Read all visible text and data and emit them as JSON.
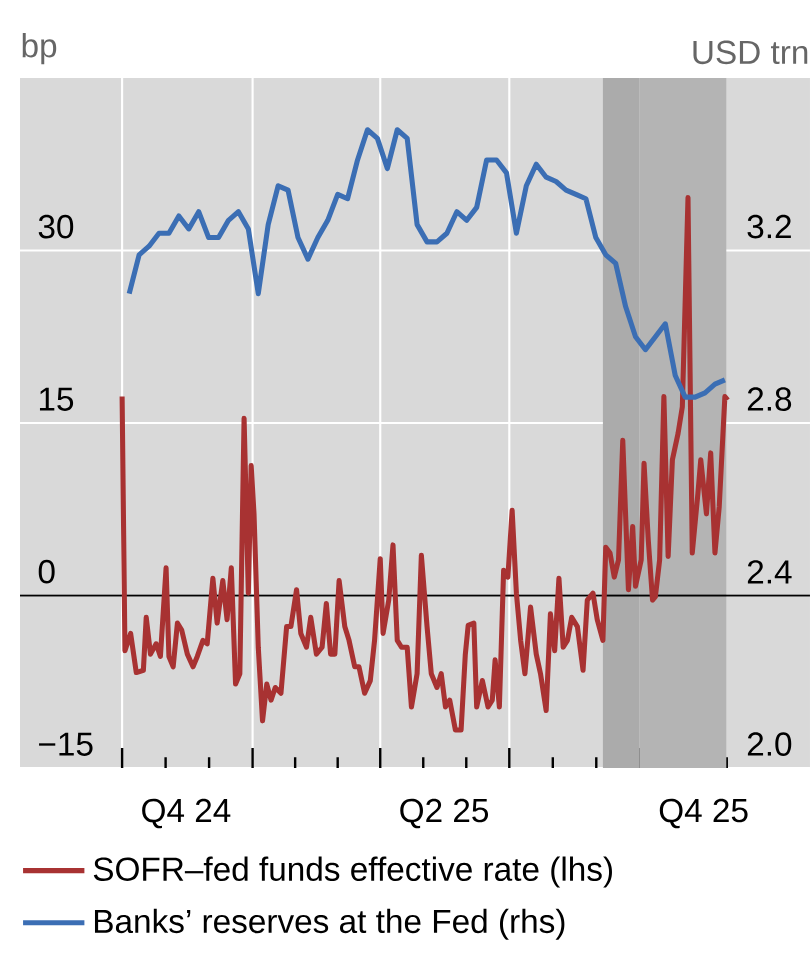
{
  "chart_data": {
    "type": "line",
    "ylabel": "bp",
    "y2label": "USD trn",
    "xlim": [
      "2024-07-21",
      "2026-01-29"
    ],
    "xticks": [
      {
        "value": "2024-10-01",
        "label": null
      },
      {
        "value": "2025-01-01",
        "label": null
      },
      {
        "value": "2025-04-01",
        "label": null
      },
      {
        "value": "2025-07-01",
        "label": null
      },
      {
        "value": "2025-10-01",
        "label": null
      },
      {
        "value": "2024-11-15",
        "label": "Q4 24"
      },
      {
        "value": "2025-05-16",
        "label": "Q2 25"
      },
      {
        "value": "2025-11-15",
        "label": "Q4 25"
      }
    ],
    "ylim": [
      -15,
      45
    ],
    "yticks": [
      {
        "value": -15,
        "label": "−15"
      },
      0,
      15,
      30
    ],
    "y2lim": [
      2.0,
      3.6
    ],
    "y2ticks": [
      {
        "value": 2.0,
        "label": "2.0"
      },
      2.4,
      2.8,
      3.2
    ],
    "grid": true,
    "legend": "bottom",
    "ref_lines": [
      {
        "axis": "y",
        "value": 0,
        "color": "#000000"
      }
    ],
    "bands": [
      {
        "axis": "x",
        "from": "2025-09-05",
        "to": "2025-10-01",
        "color": "#ababab"
      },
      {
        "axis": "x",
        "from": "2025-10-01",
        "to": "2025-12-01",
        "color": "#b4b4b4"
      }
    ],
    "series": [
      {
        "name": "SOFR–fed funds effective rate (lhs)",
        "color": "#a83232",
        "x": [
          "2024-10-01",
          "2024-10-03",
          "2024-10-07",
          "2024-10-11",
          "2024-10-16",
          "2024-10-18",
          "2024-10-21",
          "2024-10-25",
          "2024-10-28",
          "2024-11-01",
          "2024-11-03",
          "2024-11-06",
          "2024-11-09",
          "2024-11-12",
          "2024-11-16",
          "2024-11-20",
          "2024-11-23",
          "2024-11-27",
          "2024-11-30",
          "2024-12-04",
          "2024-12-07",
          "2024-12-11",
          "2024-12-14",
          "2024-12-17",
          "2024-12-20",
          "2024-12-23",
          "2024-12-26",
          "2024-12-29",
          "2024-12-31",
          "2025-01-02",
          "2025-01-05",
          "2025-01-08",
          "2025-01-11",
          "2025-01-14",
          "2025-01-17",
          "2025-01-21",
          "2025-01-25",
          "2025-01-28",
          "2025-02-01",
          "2025-02-04",
          "2025-02-08",
          "2025-02-11",
          "2025-02-15",
          "2025-02-19",
          "2025-02-22",
          "2025-02-25",
          "2025-02-28",
          "2025-03-03",
          "2025-03-07",
          "2025-03-10",
          "2025-03-14",
          "2025-03-17",
          "2025-03-21",
          "2025-03-25",
          "2025-03-28",
          "2025-04-01",
          "2025-04-03",
          "2025-04-07",
          "2025-04-10",
          "2025-04-13",
          "2025-04-16",
          "2025-04-20",
          "2025-04-23",
          "2025-04-27",
          "2025-04-30",
          "2025-05-04",
          "2025-05-07",
          "2025-05-11",
          "2025-05-14",
          "2025-05-17",
          "2025-05-20",
          "2025-05-24",
          "2025-05-28",
          "2025-05-31",
          "2025-06-02",
          "2025-06-06",
          "2025-06-08",
          "2025-06-12",
          "2025-06-16",
          "2025-06-19",
          "2025-06-21",
          "2025-06-24",
          "2025-06-27",
          "2025-06-30",
          "2025-07-03",
          "2025-07-06",
          "2025-07-09",
          "2025-07-12",
          "2025-07-16",
          "2025-07-20",
          "2025-07-23",
          "2025-07-27",
          "2025-07-30",
          "2025-08-02",
          "2025-08-05",
          "2025-08-08",
          "2025-08-11",
          "2025-08-14",
          "2025-08-18",
          "2025-08-22",
          "2025-08-25",
          "2025-08-29",
          "2025-09-01",
          "2025-09-05",
          "2025-09-07",
          "2025-09-10",
          "2025-09-13",
          "2025-09-16",
          "2025-09-19",
          "2025-09-23",
          "2025-09-26",
          "2025-09-28",
          "2025-10-02",
          "2025-10-04",
          "2025-10-07",
          "2025-10-10",
          "2025-10-12",
          "2025-10-15",
          "2025-10-18",
          "2025-10-21",
          "2025-10-24",
          "2025-10-28",
          "2025-10-31",
          "2025-11-04",
          "2025-11-07",
          "2025-11-11",
          "2025-11-13",
          "2025-11-17",
          "2025-11-20",
          "2025-11-23",
          "2025-11-26",
          "2025-11-30",
          "2025-12-02"
        ],
        "values": [
          17.3,
          -4.8,
          -3.3,
          -6.7,
          -6.5,
          -1.9,
          -5.1,
          -4.2,
          -5.3,
          2.4,
          -5.3,
          -6.2,
          -2.4,
          -3.0,
          -5.1,
          -6.2,
          -5.3,
          -3.9,
          -4.2,
          1.5,
          -2.4,
          1.3,
          -2.1,
          2.4,
          -7.7,
          -6.8,
          15.4,
          0.2,
          11.3,
          7.1,
          -4.5,
          -10.9,
          -7.7,
          -9.1,
          -8.0,
          -8.5,
          -2.7,
          -2.7,
          0.5,
          -3.3,
          -4.5,
          -1.9,
          -5.1,
          -4.5,
          -0.7,
          -5.1,
          -5.1,
          1.3,
          -2.7,
          -3.9,
          -6.2,
          -6.2,
          -8.5,
          -7.4,
          -3.9,
          3.2,
          -3.3,
          -0.4,
          4.4,
          -3.9,
          -4.5,
          -4.5,
          -9.7,
          -6.8,
          3.5,
          -2.7,
          -6.8,
          -8.0,
          -6.8,
          -9.7,
          -9.1,
          -11.7,
          -11.7,
          -5.1,
          -2.6,
          -2.4,
          -9.7,
          -7.4,
          -9.7,
          -9.1,
          -5.6,
          -9.7,
          2.2,
          1.6,
          7.4,
          0.2,
          -3.9,
          -6.8,
          -1.0,
          -5.1,
          -6.8,
          -10.0,
          -1.6,
          -4.8,
          1.5,
          -4.5,
          -3.9,
          -1.9,
          -2.7,
          -6.5,
          -0.4,
          0.2,
          -2.1,
          -3.9,
          4.2,
          3.7,
          1.6,
          3.1,
          13.5,
          0.5,
          6.0,
          0.8,
          3.1,
          11.5,
          4.8,
          -0.4,
          -0.1,
          3.1,
          17.3,
          3.4,
          11.8,
          14.1,
          16.4,
          34.6,
          3.7,
          8.9,
          11.8,
          7.1,
          12.4,
          3.7,
          7.7,
          17.3,
          17.0
        ]
      },
      {
        "name": "Banks’ reserves at the Fed (rhs)",
        "color": "#3b6eb4",
        "axis": "y2",
        "x": [
          "2024-10-06",
          "2024-10-13",
          "2024-10-20",
          "2024-10-27",
          "2024-11-03",
          "2024-11-10",
          "2024-11-17",
          "2024-11-24",
          "2024-12-01",
          "2024-12-08",
          "2024-12-15",
          "2024-12-22",
          "2024-12-29",
          "2025-01-05",
          "2025-01-12",
          "2025-01-19",
          "2025-01-26",
          "2025-02-02",
          "2025-02-09",
          "2025-02-16",
          "2025-02-23",
          "2025-03-02",
          "2025-03-09",
          "2025-03-16",
          "2025-03-23",
          "2025-03-30",
          "2025-04-06",
          "2025-04-13",
          "2025-04-20",
          "2025-04-27",
          "2025-05-04",
          "2025-05-11",
          "2025-05-18",
          "2025-05-25",
          "2025-06-01",
          "2025-06-08",
          "2025-06-15",
          "2025-06-22",
          "2025-06-29",
          "2025-07-06",
          "2025-07-13",
          "2025-07-20",
          "2025-07-27",
          "2025-08-03",
          "2025-08-10",
          "2025-08-17",
          "2025-08-24",
          "2025-08-31",
          "2025-09-07",
          "2025-09-14",
          "2025-09-21",
          "2025-09-28",
          "2025-10-05",
          "2025-10-12",
          "2025-10-19",
          "2025-10-26",
          "2025-11-02",
          "2025-11-09",
          "2025-11-16",
          "2025-11-23",
          "2025-11-30"
        ],
        "values": [
          3.1,
          3.19,
          3.21,
          3.24,
          3.24,
          3.28,
          3.25,
          3.29,
          3.23,
          3.23,
          3.27,
          3.29,
          3.25,
          3.1,
          3.26,
          3.35,
          3.34,
          3.23,
          3.18,
          3.23,
          3.27,
          3.33,
          3.32,
          3.41,
          3.48,
          3.46,
          3.39,
          3.48,
          3.46,
          3.26,
          3.22,
          3.22,
          3.24,
          3.29,
          3.27,
          3.3,
          3.41,
          3.41,
          3.38,
          3.24,
          3.35,
          3.4,
          3.37,
          3.36,
          3.34,
          3.33,
          3.32,
          3.23,
          3.19,
          3.17,
          3.07,
          3.0,
          2.97,
          3.0,
          3.03,
          2.91,
          2.86,
          2.86,
          2.87,
          2.89,
          2.9
        ]
      }
    ]
  }
}
